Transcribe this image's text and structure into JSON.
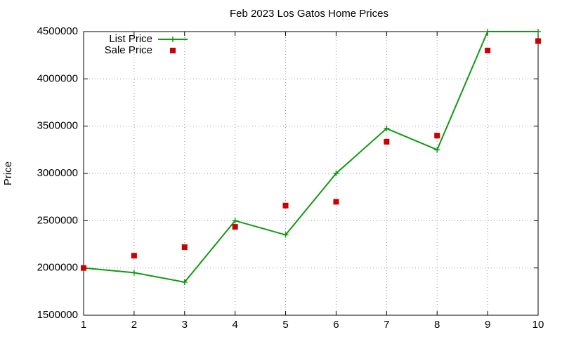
{
  "chart_data": {
    "type": "line",
    "title": "Feb 2023 Los Gatos Home Prices",
    "y_label": "Price",
    "x": [
      1,
      2,
      3,
      4,
      5,
      6,
      7,
      8,
      9,
      10
    ],
    "xlim": [
      1,
      10
    ],
    "xticks": [
      1,
      2,
      3,
      4,
      5,
      6,
      7,
      8,
      9,
      10
    ],
    "ylim": [
      1500000,
      4500000
    ],
    "yticks": [
      1500000,
      2000000,
      2500000,
      3000000,
      3500000,
      4000000,
      4500000
    ],
    "grid": true,
    "legend": "top-left",
    "series": [
      {
        "name": "List Price",
        "color": "#119911",
        "line": true,
        "marker": "plus",
        "values": [
          2000000,
          1950000,
          1850000,
          2500000,
          2350000,
          3000000,
          3475000,
          3250000,
          4500000,
          4500000
        ]
      },
      {
        "name": "Sale Price",
        "color": "#cc0000",
        "line": false,
        "marker": "square",
        "values": [
          2000000,
          2130000,
          2220000,
          2435000,
          2660000,
          2700000,
          3335000,
          3400000,
          4300000,
          4400000
        ]
      }
    ]
  }
}
